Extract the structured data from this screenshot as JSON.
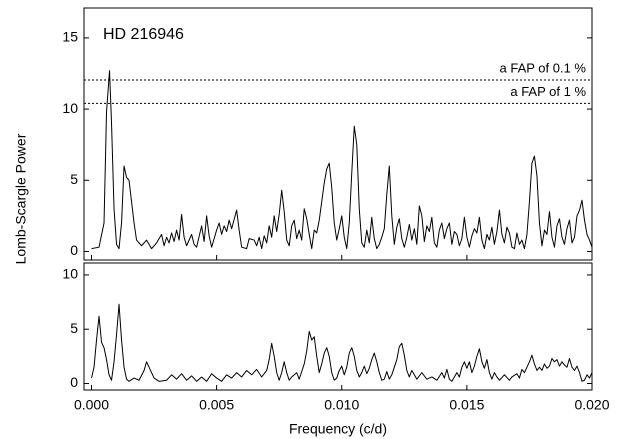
{
  "chart_data": [
    {
      "type": "line",
      "annotation": "HD 216946",
      "ylabel": "Lomb-Scargle Power",
      "xlim": [
        -0.0003,
        0.02
      ],
      "ylim": [
        -0.6,
        17.1
      ],
      "yticks": [
        0,
        5,
        10,
        15
      ],
      "hlines": [
        {
          "value": 12.04,
          "label": "a FAP of 0.1 %"
        },
        {
          "value": 10.4,
          "label": "a FAP of 1 %"
        }
      ],
      "series": [
        {
          "color": "#000000",
          "x": [
            0,
            0.0003,
            0.0005,
            0.0006,
            0.00072,
            0.0008,
            0.0009,
            0.001,
            0.0011,
            0.0012,
            0.0013,
            0.0014,
            0.0015,
            0.0016,
            0.0017,
            0.0018,
            0.002,
            0.0022,
            0.0024,
            0.0026,
            0.0028,
            0.0029,
            0.003,
            0.0031,
            0.0032,
            0.0033,
            0.0034,
            0.0035,
            0.0036,
            0.0037,
            0.0038,
            0.004,
            0.0041,
            0.0042,
            0.0044,
            0.0045,
            0.0046,
            0.0047,
            0.0048,
            0.005,
            0.0051,
            0.0052,
            0.0053,
            0.0054,
            0.0055,
            0.0056,
            0.0058,
            0.0059,
            0.006,
            0.0062,
            0.0063,
            0.0065,
            0.0066,
            0.0067,
            0.0068,
            0.0069,
            0.007,
            0.0071,
            0.0072,
            0.0073,
            0.0074,
            0.0075,
            0.0076,
            0.0077,
            0.0078,
            0.0079,
            0.008,
            0.0081,
            0.0082,
            0.0083,
            0.0084,
            0.0085,
            0.0086,
            0.0087,
            0.0088,
            0.0089,
            0.009,
            0.0091,
            0.0092,
            0.0093,
            0.0094,
            0.0095,
            0.0096,
            0.0097,
            0.0098,
            0.0099,
            0.01,
            0.0101,
            0.0102,
            0.0103,
            0.0104,
            0.0105,
            0.0106,
            0.0107,
            0.0108,
            0.0109,
            0.011,
            0.0111,
            0.0112,
            0.0113,
            0.0114,
            0.0115,
            0.0116,
            0.0117,
            0.0118,
            0.0119,
            0.012,
            0.0121,
            0.0122,
            0.0123,
            0.0124,
            0.0125,
            0.0126,
            0.0127,
            0.0128,
            0.0129,
            0.013,
            0.0131,
            0.0132,
            0.0133,
            0.0134,
            0.0135,
            0.0136,
            0.0137,
            0.0138,
            0.0139,
            0.014,
            0.0141,
            0.0142,
            0.0143,
            0.0144,
            0.0145,
            0.0146,
            0.0147,
            0.0148,
            0.0149,
            0.015,
            0.0151,
            0.0152,
            0.0153,
            0.0154,
            0.0155,
            0.0156,
            0.0157,
            0.0158,
            0.0159,
            0.016,
            0.0161,
            0.0162,
            0.0163,
            0.0164,
            0.0165,
            0.0166,
            0.0167,
            0.0168,
            0.0169,
            0.017,
            0.0171,
            0.0172,
            0.0173,
            0.0174,
            0.0175,
            0.0176,
            0.0177,
            0.0178,
            0.0179,
            0.018,
            0.0181,
            0.0182,
            0.0183,
            0.0184,
            0.0185,
            0.0186,
            0.0187,
            0.0188,
            0.0189,
            0.019,
            0.0191,
            0.0192,
            0.0193,
            0.0194,
            0.0195,
            0.0196,
            0.0197,
            0.0198,
            0.0199,
            0.02
          ],
          "values": [
            0.2,
            0.3,
            2,
            9.8,
            12.7,
            9,
            3,
            0.5,
            0.2,
            2,
            6,
            5.2,
            5,
            3.5,
            2,
            0.8,
            0.4,
            0.8,
            0.2,
            0.6,
            1.2,
            0.4,
            1,
            0.6,
            1.3,
            0.7,
            1.5,
            0.8,
            2.6,
            1,
            0.4,
            1.2,
            0.5,
            0.3,
            1.8,
            0.7,
            2.5,
            1.1,
            0.3,
            1.5,
            2,
            1.2,
            1.8,
            1.4,
            2.2,
            1.6,
            2.9,
            1.5,
            0.3,
            0.2,
            0.9,
            0.8,
            0.4,
            1,
            0.2,
            1.1,
            0.6,
            1.8,
            1,
            2.5,
            1.4,
            2.6,
            4.3,
            2.8,
            0.8,
            0.4,
            1.8,
            2.2,
            0.9,
            1.5,
            0.8,
            3,
            2.3,
            1.2,
            0.2,
            1.5,
            1.3,
            2.2,
            3.5,
            4.8,
            5.8,
            6.2,
            4.5,
            2,
            0.8,
            1.6,
            2.5,
            1,
            0.2,
            2,
            5.5,
            8.8,
            7.5,
            3,
            0.6,
            0.3,
            1.5,
            0.6,
            2.4,
            0.9,
            0.2,
            0.5,
            1,
            1.6,
            4,
            6,
            2.5,
            0.5,
            1.7,
            2.3,
            0.9,
            0.3,
            1,
            1.9,
            0.8,
            1.6,
            0.5,
            3.2,
            2.5,
            0.7,
            1.8,
            1.4,
            2.4,
            0.6,
            0.3,
            1.5,
            2,
            0.9,
            1.6,
            2,
            0.5,
            1.4,
            1.2,
            0.4,
            0.9,
            2.4,
            1,
            0.3,
            1.1,
            1.6,
            1.3,
            2.4,
            0.8,
            0.2,
            1.2,
            0.8,
            1.7,
            0.5,
            1.4,
            2.9,
            1.2,
            0.6,
            1.7,
            1.3,
            0.3,
            0.2,
            1.3,
            0.5,
            0.8,
            0.2,
            1.2,
            3.5,
            6.2,
            6.7,
            5.3,
            2,
            0.4,
            1.5,
            1.2,
            2.8,
            1,
            0.3,
            1.8,
            2.3,
            1,
            0.5,
            1.6,
            2.2,
            0.6,
            1,
            2.5,
            2.9,
            3.6,
            2.2,
            1.2,
            0.8,
            0.3
          ]
        }
      ]
    },
    {
      "type": "line",
      "xlabel": "Frequency (c/d)",
      "xlim": [
        -0.0003,
        0.02
      ],
      "ylim": [
        -0.6,
        11.1
      ],
      "yticks": [
        0,
        5,
        10
      ],
      "xticks": [
        {
          "value": 0,
          "label": "0.000"
        },
        {
          "value": 0.005,
          "label": "0.005"
        },
        {
          "value": 0.01,
          "label": "0.010"
        },
        {
          "value": 0.015,
          "label": "0.015"
        },
        {
          "value": 0.02,
          "label": "0.020"
        }
      ],
      "series": [
        {
          "color": "#000000",
          "x": [
            0,
            0.0001,
            0.0002,
            0.0003,
            0.0004,
            0.0005,
            0.0006,
            0.0007,
            0.0008,
            0.0009,
            0.001,
            0.0011,
            0.0012,
            0.0013,
            0.0014,
            0.0015,
            0.0017,
            0.0019,
            0.0021,
            0.0022,
            0.0023,
            0.0025,
            0.0027,
            0.003,
            0.0032,
            0.0034,
            0.0036,
            0.0038,
            0.004,
            0.0042,
            0.0044,
            0.0046,
            0.0048,
            0.005,
            0.0052,
            0.0054,
            0.0056,
            0.0058,
            0.006,
            0.0062,
            0.0064,
            0.0066,
            0.0068,
            0.007,
            0.0071,
            0.0072,
            0.0073,
            0.0074,
            0.0075,
            0.0076,
            0.0077,
            0.0078,
            0.0079,
            0.008,
            0.0082,
            0.0083,
            0.0085,
            0.0086,
            0.0087,
            0.0088,
            0.0089,
            0.009,
            0.0091,
            0.0092,
            0.0093,
            0.0094,
            0.0095,
            0.0096,
            0.0097,
            0.0098,
            0.0099,
            0.01,
            0.0101,
            0.0102,
            0.0103,
            0.0104,
            0.0105,
            0.0106,
            0.0107,
            0.0108,
            0.0109,
            0.011,
            0.0111,
            0.0112,
            0.0113,
            0.0114,
            0.0115,
            0.0116,
            0.0117,
            0.0118,
            0.0119,
            0.012,
            0.0121,
            0.0122,
            0.0123,
            0.0124,
            0.0125,
            0.0126,
            0.0127,
            0.0128,
            0.0129,
            0.013,
            0.0132,
            0.0134,
            0.0136,
            0.0138,
            0.014,
            0.0141,
            0.0142,
            0.0143,
            0.0144,
            0.0146,
            0.0147,
            0.0148,
            0.0149,
            0.015,
            0.0151,
            0.0152,
            0.0153,
            0.0154,
            0.0155,
            0.0156,
            0.0157,
            0.0158,
            0.0159,
            0.016,
            0.0161,
            0.0162,
            0.0163,
            0.0165,
            0.0167,
            0.0168,
            0.017,
            0.0171,
            0.0172,
            0.0173,
            0.0174,
            0.0175,
            0.0176,
            0.0177,
            0.0178,
            0.0179,
            0.018,
            0.0181,
            0.0182,
            0.0183,
            0.0184,
            0.0185,
            0.0186,
            0.0187,
            0.0188,
            0.0189,
            0.019,
            0.0191,
            0.0192,
            0.0193,
            0.0194,
            0.0195,
            0.0196,
            0.0197,
            0.0198,
            0.0199,
            0.02
          ],
          "values": [
            0.5,
            1.5,
            4,
            6.2,
            3.8,
            3.3,
            2.2,
            0.8,
            0.3,
            2,
            4.5,
            7.3,
            4,
            1.5,
            0.4,
            0.2,
            0.5,
            0.3,
            1.2,
            2,
            1.5,
            0.5,
            0.2,
            0.3,
            0.8,
            0.4,
            0.9,
            0.3,
            0.7,
            0.2,
            0.6,
            0.2,
            0.9,
            0.5,
            0.2,
            0.8,
            0.5,
            1,
            0.6,
            1.2,
            0.8,
            1.3,
            0.6,
            1.2,
            2.2,
            3.7,
            2.5,
            1,
            0.3,
            1,
            2,
            1,
            0.3,
            0.6,
            1,
            0.4,
            1.8,
            3,
            4.8,
            4,
            4.3,
            2.5,
            1,
            1.8,
            2.8,
            3.3,
            2.5,
            1,
            0.3,
            0.5,
            1.2,
            1.6,
            0.8,
            1.5,
            2.8,
            3.3,
            2.5,
            1.2,
            0.6,
            1,
            1.6,
            0.9,
            1.4,
            2.2,
            2.8,
            2,
            1,
            0.3,
            0.4,
            1.1,
            0.4,
            0.8,
            1.5,
            2.2,
            3.4,
            3.7,
            2.6,
            1.2,
            0.6,
            1.2,
            0.8,
            0.4,
            1,
            0.4,
            0.6,
            0.3,
            1,
            0.5,
            1.3,
            0.4,
            0.2,
            1,
            0.6,
            1.5,
            2,
            1.4,
            2,
            1,
            1.6,
            2.5,
            3.2,
            2,
            1.4,
            2.2,
            1,
            0.4,
            1,
            0.6,
            0.3,
            0.8,
            0.3,
            0.6,
            0.9,
            0.5,
            1.3,
            1,
            1.5,
            2,
            2.6,
            1.8,
            1.2,
            1.5,
            1.2,
            1.8,
            1.4,
            1.6,
            2.3,
            2,
            2.2,
            1.6,
            2,
            1.7,
            1.5,
            2.3,
            1.5,
            1.2,
            1.6,
            1,
            0.2,
            0.3,
            0.8,
            0.5,
            1
          ]
        }
      ]
    }
  ]
}
